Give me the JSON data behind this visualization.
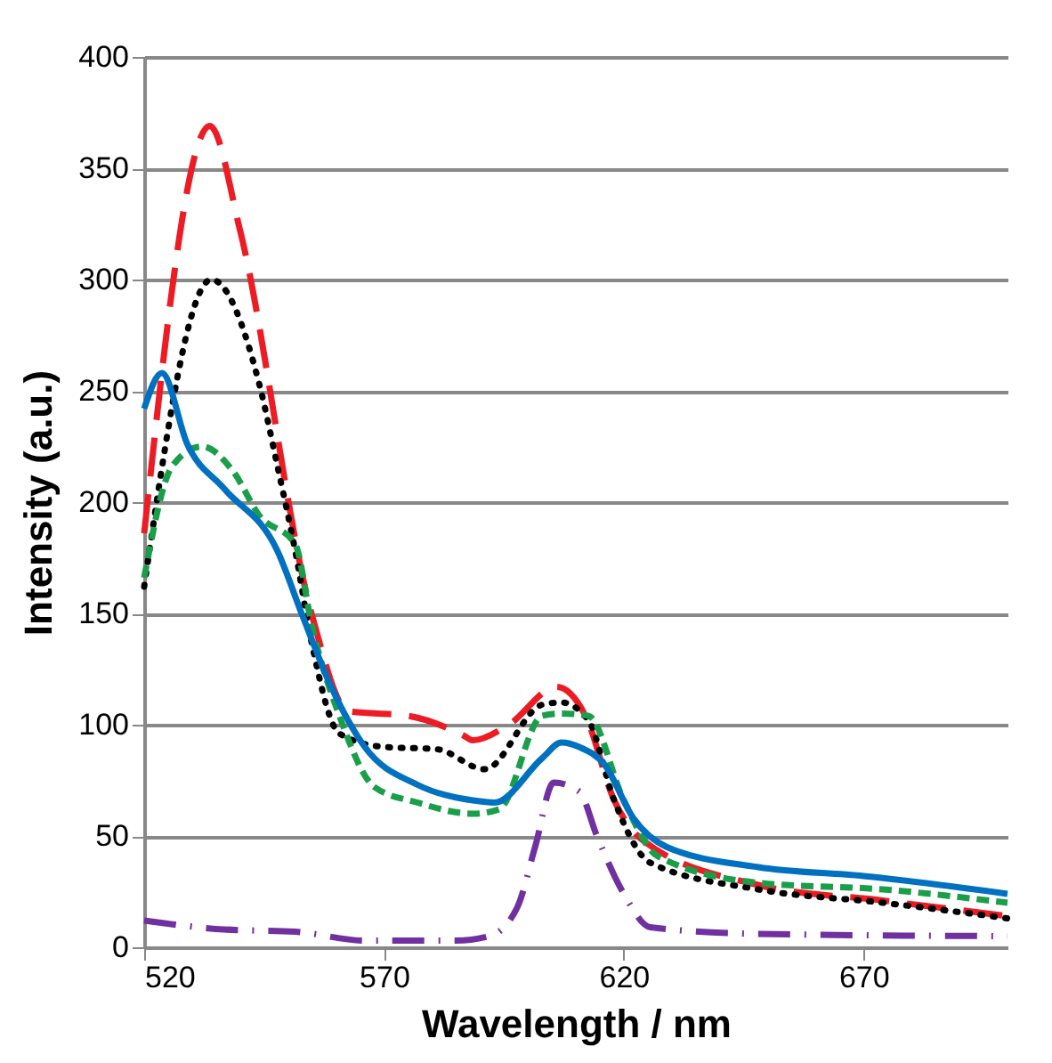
{
  "chart_data": {
    "type": "line",
    "xlabel": "Wavelength / nm",
    "ylabel": "Intensity (a.u.)",
    "xlim": [
      520,
      700
    ],
    "xticks": [
      520,
      570,
      620,
      670
    ],
    "ylim": [
      0,
      400
    ],
    "yticks": [
      0,
      50,
      100,
      150,
      200,
      250,
      300,
      350,
      400
    ],
    "grid": "y",
    "series": [
      {
        "color": "#ed1c24",
        "line_style": "long_dashed",
        "x": [
          520,
          533.7,
          540,
          555,
          562.6,
          575,
          586.7,
          588.5,
          596,
          606,
          612,
          618,
          624,
          648,
          674,
          700
        ],
        "values": [
          186,
          369,
          322,
          149,
          106,
          104,
          95,
          93,
          100,
          117,
          104,
          66,
          48,
          28,
          21,
          14
        ]
      },
      {
        "color": "#000000",
        "line_style": "dotted",
        "x": [
          520,
          534,
          544,
          547.8,
          551.5,
          555,
          560.7,
          570,
          581,
          591,
          603,
          607,
          612.6,
          618,
          625.5,
          648,
          674,
          700
        ],
        "values": [
          162,
          300,
          253,
          216,
          178,
          136,
          96,
          90,
          89,
          80,
          109,
          110,
          102,
          66,
          38,
          26,
          20,
          13
        ]
      },
      {
        "color": "#1a9e4a",
        "line_style": "dashed",
        "x": [
          520,
          525.8,
          532,
          538.5,
          544,
          551.5,
          555,
          560.7,
          568,
          577,
          588.5,
          594,
          603,
          607,
          612.6,
          620,
          627,
          648,
          674,
          700
        ],
        "values": [
          166,
          216,
          225,
          214,
          194,
          181,
          144,
          104,
          72,
          65,
          60,
          62,
          104,
          105,
          104,
          66,
          41,
          29,
          26,
          20
        ]
      },
      {
        "color": "#0070c0",
        "line_style": "solid",
        "x": [
          520,
          523.7,
          529,
          536.7,
          547.8,
          553,
          559,
          566,
          577,
          588.5,
          593,
          603,
          607,
          610.7,
          616,
          622,
          629,
          648,
          670,
          700
        ],
        "values": [
          242,
          258,
          226,
          206,
          178,
          149,
          117,
          90,
          73,
          66,
          65,
          85,
          92,
          90,
          82,
          58,
          45,
          36,
          32,
          24
        ]
      },
      {
        "color": "#7030a0",
        "line_style": "dashdot",
        "x": [
          520,
          536.7,
          551.5,
          566,
          585,
          592,
          597.8,
          601.5,
          605.4,
          610.7,
          614.4,
          620,
          625.5,
          648,
          700
        ],
        "values": [
          12,
          8,
          7,
          3,
          3,
          5,
          18,
          45,
          74,
          70,
          50,
          24,
          9,
          6,
          5
        ]
      }
    ]
  }
}
